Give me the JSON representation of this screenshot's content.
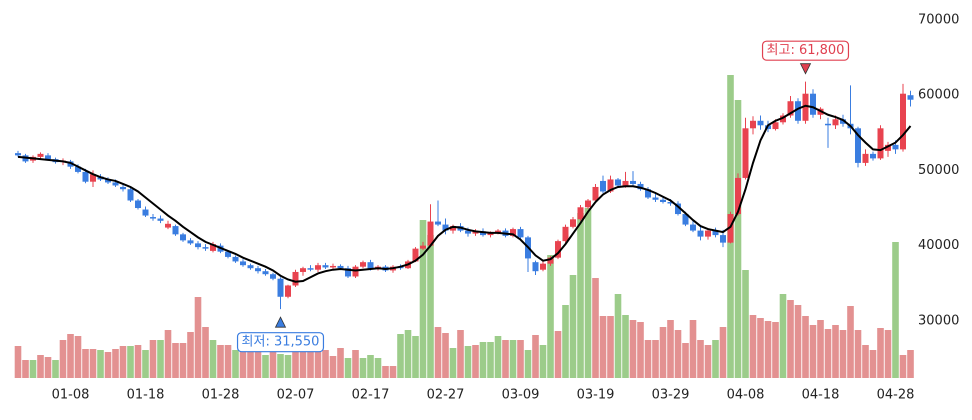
{
  "chart_data": {
    "type": "candlestick",
    "categories": [
      null,
      null,
      null,
      null,
      null,
      null,
      null,
      "01-08",
      null,
      null,
      null,
      null,
      null,
      null,
      null,
      null,
      null,
      "01-18",
      null,
      null,
      null,
      null,
      null,
      null,
      null,
      null,
      null,
      "01-28",
      null,
      null,
      null,
      null,
      null,
      null,
      null,
      null,
      null,
      "02-07",
      null,
      null,
      null,
      null,
      null,
      null,
      null,
      null,
      null,
      "02-17",
      null,
      null,
      null,
      null,
      null,
      null,
      null,
      null,
      null,
      "02-27",
      null,
      null,
      null,
      null,
      null,
      null,
      null,
      null,
      null,
      "03-09",
      null,
      null,
      null,
      null,
      null,
      null,
      null,
      null,
      null,
      "03-19",
      null,
      null,
      null,
      null,
      null,
      null,
      null,
      null,
      null,
      "03-29",
      null,
      null,
      null,
      null,
      null,
      null,
      null,
      null,
      null,
      "04-08",
      null,
      null,
      null,
      null,
      null,
      null,
      null,
      null,
      null,
      "04-18",
      null,
      null,
      null,
      null,
      null,
      null,
      null,
      null,
      null,
      "04-28",
      null,
      null
    ],
    "candles": [
      [
        52300,
        52600,
        51800,
        52000
      ],
      [
        52000,
        52200,
        51000,
        51200
      ],
      [
        51300,
        52000,
        51000,
        51800
      ],
      [
        51800,
        52400,
        51500,
        52200
      ],
      [
        52000,
        52300,
        51300,
        51500
      ],
      [
        51500,
        51700,
        50900,
        51100
      ],
      [
        51200,
        51600,
        50700,
        51300
      ],
      [
        51200,
        51400,
        50200,
        50500
      ],
      [
        50500,
        50800,
        49600,
        49800
      ],
      [
        49800,
        50200,
        48300,
        48500
      ],
      [
        48500,
        50000,
        47800,
        49500
      ],
      [
        49200,
        49500,
        48600,
        48800
      ],
      [
        48800,
        49100,
        48200,
        48400
      ],
      [
        48400,
        48800,
        47800,
        48000
      ],
      [
        47800,
        48300,
        47200,
        47500
      ],
      [
        47500,
        47800,
        45800,
        46000
      ],
      [
        46000,
        46200,
        44800,
        45000
      ],
      [
        44800,
        45200,
        43800,
        44000
      ],
      [
        43800,
        44200,
        43300,
        43600
      ],
      [
        43600,
        44000,
        43000,
        43300
      ],
      [
        42400,
        43300,
        42200,
        42900
      ],
      [
        42600,
        42800,
        41300,
        41500
      ],
      [
        41500,
        41700,
        40500,
        40700
      ],
      [
        40700,
        41000,
        40100,
        40300
      ],
      [
        40300,
        40600,
        39500,
        39800
      ],
      [
        39800,
        40200,
        39300,
        39600
      ],
      [
        39300,
        40500,
        39100,
        40200
      ],
      [
        40000,
        40300,
        39000,
        39200
      ],
      [
        39200,
        39400,
        38300,
        38500
      ],
      [
        38500,
        38700,
        37700,
        37900
      ],
      [
        37900,
        38200,
        37200,
        37400
      ],
      [
        37400,
        37600,
        36800,
        37000
      ],
      [
        37000,
        37300,
        36300,
        36600
      ],
      [
        36600,
        36900,
        36000,
        36200
      ],
      [
        36200,
        36400,
        35400,
        35600
      ],
      [
        35600,
        35800,
        31550,
        33200
      ],
      [
        33200,
        34800,
        33000,
        34700
      ],
      [
        34700,
        36800,
        34500,
        36500
      ],
      [
        36500,
        37200,
        36000,
        37000
      ],
      [
        37000,
        37400,
        36600,
        36800
      ],
      [
        36800,
        37700,
        36500,
        37400
      ],
      [
        37400,
        37700,
        36900,
        37100
      ],
      [
        37100,
        37600,
        36800,
        37300
      ],
      [
        37300,
        37500,
        36800,
        37000
      ],
      [
        37000,
        37300,
        35700,
        35900
      ],
      [
        35900,
        37400,
        35700,
        37200
      ],
      [
        37200,
        38000,
        37000,
        37800
      ],
      [
        37800,
        38100,
        36700,
        36900
      ],
      [
        36900,
        37400,
        36700,
        37200
      ],
      [
        37200,
        37400,
        36500,
        36700
      ],
      [
        36700,
        37400,
        36400,
        37200
      ],
      [
        37200,
        37500,
        36800,
        37000
      ],
      [
        37000,
        38100,
        36900,
        37900
      ],
      [
        37900,
        39800,
        37800,
        39600
      ],
      [
        39600,
        40500,
        39400,
        40000
      ],
      [
        40000,
        45500,
        39800,
        43200
      ],
      [
        43200,
        46000,
        42600,
        42800
      ],
      [
        42800,
        43600,
        41500,
        42000
      ],
      [
        42000,
        42800,
        41600,
        42600
      ],
      [
        42600,
        43000,
        41800,
        42000
      ],
      [
        42000,
        42400,
        41200,
        41600
      ],
      [
        41600,
        42200,
        41300,
        41900
      ],
      [
        41900,
        42300,
        41200,
        41400
      ],
      [
        41400,
        41900,
        41100,
        41700
      ],
      [
        41700,
        42200,
        41500,
        42000
      ],
      [
        42000,
        42300,
        41100,
        41300
      ],
      [
        41300,
        42400,
        41100,
        42200
      ],
      [
        42200,
        42500,
        40900,
        41100
      ],
      [
        41100,
        41300,
        36500,
        38300
      ],
      [
        37800,
        38000,
        36100,
        36600
      ],
      [
        36800,
        37900,
        36600,
        37600
      ],
      [
        37600,
        38600,
        37300,
        38400
      ],
      [
        38400,
        40800,
        38200,
        40600
      ],
      [
        40600,
        42800,
        40400,
        42500
      ],
      [
        42500,
        43800,
        42300,
        43500
      ],
      [
        43500,
        45400,
        43300,
        45100
      ],
      [
        45100,
        46200,
        44900,
        46000
      ],
      [
        46000,
        48200,
        45800,
        47800
      ],
      [
        48600,
        49300,
        47000,
        47200
      ],
      [
        47200,
        49300,
        47000,
        48800
      ],
      [
        48800,
        49000,
        47800,
        48000
      ],
      [
        47900,
        49800,
        47700,
        48600
      ],
      [
        48600,
        49900,
        47800,
        48200
      ],
      [
        48200,
        48500,
        47300,
        47500
      ],
      [
        47500,
        47800,
        46200,
        46400
      ],
      [
        46400,
        46900,
        45800,
        46100
      ],
      [
        46100,
        46600,
        45600,
        45800
      ],
      [
        45800,
        46200,
        45300,
        45600
      ],
      [
        45600,
        45900,
        44000,
        44200
      ],
      [
        44200,
        44500,
        42600,
        42800
      ],
      [
        42800,
        43300,
        41800,
        42000
      ],
      [
        42000,
        42700,
        40700,
        41200
      ],
      [
        41200,
        42300,
        40800,
        42000
      ],
      [
        42000,
        42400,
        41100,
        41400
      ],
      [
        41400,
        42100,
        39800,
        40400
      ],
      [
        40400,
        44500,
        40300,
        44200
      ],
      [
        44200,
        49600,
        44000,
        49000
      ],
      [
        49000,
        57000,
        48800,
        55600
      ],
      [
        55600,
        57200,
        54800,
        56600
      ],
      [
        56600,
        57300,
        55400,
        56000
      ],
      [
        56000,
        56600,
        55100,
        55500
      ],
      [
        55500,
        56800,
        55300,
        56400
      ],
      [
        56400,
        57600,
        56100,
        57300
      ],
      [
        57300,
        59900,
        57000,
        59200
      ],
      [
        59200,
        59600,
        56200,
        56600
      ],
      [
        56600,
        61800,
        56200,
        60200
      ],
      [
        60200,
        60800,
        57000,
        57400
      ],
      [
        57400,
        58400,
        56800,
        58200
      ],
      [
        56200,
        57000,
        53000,
        56000
      ],
      [
        56000,
        57300,
        55500,
        56800
      ],
      [
        56800,
        57400,
        55800,
        56200
      ],
      [
        56200,
        61300,
        54800,
        55600
      ],
      [
        55600,
        55800,
        50400,
        51000
      ],
      [
        51000,
        52800,
        50600,
        52200
      ],
      [
        52200,
        52500,
        51300,
        51600
      ],
      [
        51600,
        56000,
        51400,
        55600
      ],
      [
        52600,
        53800,
        51800,
        53400
      ],
      [
        53400,
        54000,
        52200,
        52800
      ],
      [
        52800,
        61500,
        52500,
        60200
      ],
      [
        60000,
        60600,
        58500,
        59400
      ]
    ],
    "ma": [
      51800,
      51700,
      51600,
      51500,
      51400,
      51300,
      51200,
      51000,
      50500,
      50000,
      49500,
      49100,
      48800,
      48600,
      48200,
      47800,
      47200,
      46400,
      45600,
      44800,
      44000,
      43300,
      42500,
      41800,
      41100,
      40500,
      40100,
      39700,
      39300,
      38900,
      38400,
      38000,
      37600,
      37200,
      36700,
      36000,
      35500,
      35200,
      35300,
      35800,
      36300,
      36600,
      36800,
      36900,
      36800,
      36700,
      36800,
      36900,
      37000,
      36900,
      37000,
      37200,
      37500,
      38000,
      38800,
      40000,
      41300,
      42100,
      42500,
      42400,
      42100,
      41900,
      41800,
      41700,
      41700,
      41600,
      41500,
      40800,
      39800,
      38700,
      38000,
      38200,
      39000,
      40200,
      41600,
      43000,
      44500,
      45800,
      46800,
      47400,
      47800,
      47900,
      47900,
      47700,
      47400,
      47000,
      46500,
      46000,
      45200,
      44300,
      43400,
      42600,
      42200,
      42000,
      41800,
      42500,
      44500,
      47500,
      51000,
      54000,
      56000,
      56600,
      57000,
      57600,
      58200,
      58600,
      58400,
      57900,
      57400,
      57100,
      56700,
      55900,
      54700,
      53700,
      52800,
      52700,
      53200,
      53700,
      54700,
      55900
    ],
    "ma_color": "#000000",
    "up_color": "#e8434f",
    "down_color": "#3a7de0",
    "volume": [
      32,
      18,
      18,
      23,
      21,
      18,
      38,
      44,
      42,
      29,
      29,
      28,
      26,
      29,
      32,
      32,
      33,
      28,
      38,
      38,
      48,
      35,
      35,
      46,
      81,
      51,
      38,
      33,
      33,
      28,
      31,
      38,
      40,
      23,
      34,
      24,
      23,
      26,
      33,
      38,
      40,
      28,
      22,
      30,
      20,
      28,
      20,
      23,
      20,
      12,
      12,
      44,
      48,
      42,
      158,
      143,
      51,
      45,
      30,
      48,
      32,
      33,
      36,
      36,
      42,
      38,
      38,
      38,
      28,
      43,
      33,
      123,
      47,
      73,
      103,
      165,
      170,
      100,
      62,
      62,
      84,
      63,
      58,
      56,
      38,
      38,
      51,
      58,
      48,
      35,
      58,
      38,
      33,
      38,
      51,
      303,
      278,
      108,
      63,
      60,
      57,
      56,
      84,
      78,
      73,
      62,
      53,
      58,
      49,
      53,
      48,
      72,
      48,
      33,
      28,
      50,
      48,
      136,
      23,
      28
    ],
    "volume_colors": [
      "#e39191",
      "#e39191",
      "#9ccc8a",
      "#e39191",
      "#e39191",
      "#9ccc8a",
      "#e39191",
      "#e39191",
      "#e39191",
      "#e39191",
      "#e39191",
      "#9ccc8a",
      "#e39191",
      "#e39191",
      "#e39191",
      "#9ccc8a",
      "#e39191",
      "#9ccc8a",
      "#e39191",
      "#9ccc8a",
      "#e39191",
      "#e39191",
      "#e39191",
      "#e39191",
      "#e39191",
      "#e39191",
      "#9ccc8a",
      "#e39191",
      "#e39191",
      "#9ccc8a",
      "#e39191",
      "#e39191",
      "#e39191",
      "#9ccc8a",
      "#e39191",
      "#9ccc8a",
      "#9ccc8a",
      "#e39191",
      "#e39191",
      "#e39191",
      "#e39191",
      "#e39191",
      "#e39191",
      "#e39191",
      "#9ccc8a",
      "#e39191",
      "#9ccc8a",
      "#9ccc8a",
      "#9ccc8a",
      "#e39191",
      "#e39191",
      "#9ccc8a",
      "#9ccc8a",
      "#9ccc8a",
      "#9ccc8a",
      "#9ccc8a",
      "#e39191",
      "#e39191",
      "#9ccc8a",
      "#e39191",
      "#9ccc8a",
      "#e39191",
      "#9ccc8a",
      "#9ccc8a",
      "#9ccc8a",
      "#e39191",
      "#9ccc8a",
      "#e39191",
      "#9ccc8a",
      "#e39191",
      "#9ccc8a",
      "#9ccc8a",
      "#e39191",
      "#9ccc8a",
      "#9ccc8a",
      "#9ccc8a",
      "#9ccc8a",
      "#e39191",
      "#e39191",
      "#e39191",
      "#9ccc8a",
      "#9ccc8a",
      "#e39191",
      "#e39191",
      "#e39191",
      "#e39191",
      "#e39191",
      "#e39191",
      "#e39191",
      "#e39191",
      "#e39191",
      "#e39191",
      "#e39191",
      "#9ccc8a",
      "#e39191",
      "#9ccc8a",
      "#9ccc8a",
      "#9ccc8a",
      "#e39191",
      "#e39191",
      "#e39191",
      "#e39191",
      "#9ccc8a",
      "#e39191",
      "#e39191",
      "#e39191",
      "#e39191",
      "#e39191",
      "#e39191",
      "#e39191",
      "#e39191",
      "#e39191",
      "#e39191",
      "#e39191",
      "#e39191",
      "#e39191",
      "#e39191",
      "#9ccc8a",
      "#e39191",
      "#e39191"
    ],
    "vlim": [
      0,
      358
    ],
    "ylim": [
      22400,
      70000
    ],
    "yticks": [
      30000,
      40000,
      50000,
      60000,
      70000
    ],
    "annotations": [
      {
        "text": "최고: 61,800",
        "value": 61800,
        "color": "#e04050"
      },
      {
        "text": "최저: 31,550",
        "value": 31550,
        "color": "#3a7de0"
      }
    ]
  }
}
